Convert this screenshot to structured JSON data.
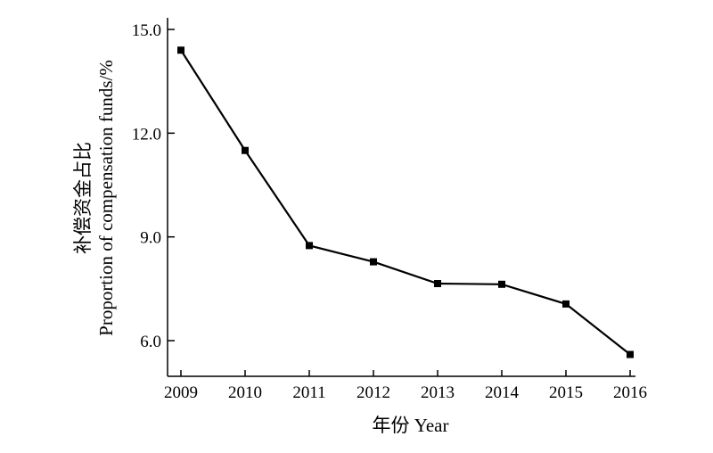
{
  "chart_data": {
    "type": "line",
    "x": [
      2009,
      2010,
      2011,
      2012,
      2013,
      2014,
      2015,
      2016
    ],
    "x_tick_labels": [
      "2009",
      "2010",
      "2011",
      "2012",
      "2013",
      "2014",
      "2015",
      "2016"
    ],
    "series": [
      {
        "values": [
          14.4,
          11.5,
          8.75,
          8.28,
          7.65,
          7.63,
          7.06,
          5.6
        ]
      }
    ],
    "y_ticks": [
      6.0,
      9.0,
      12.0,
      15.0
    ],
    "y_tick_labels": [
      "6.0",
      "9.0",
      "12.0",
      "15.0"
    ],
    "ylim": [
      5.0,
      15.0
    ],
    "xlabel": "年份 Year",
    "ylabel_cn": "补偿资金占比",
    "ylabel_en": "Proportion of compensation funds/%",
    "grid": false,
    "marker": "square",
    "line_color": "#000000"
  }
}
